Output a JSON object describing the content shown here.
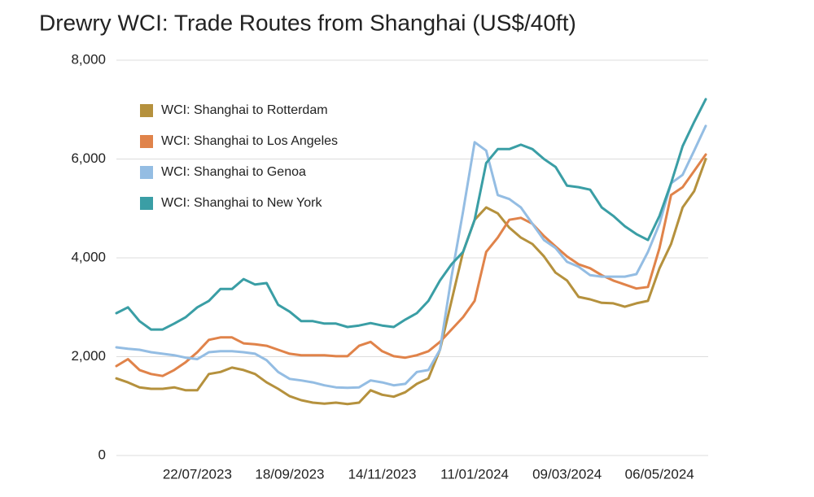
{
  "chart_data": {
    "type": "line",
    "title": "Drewry WCI: Trade Routes from Shanghai (US$/40ft)",
    "categories": [
      null,
      null,
      null,
      null,
      null,
      null,
      null,
      "22/07/2023",
      null,
      null,
      null,
      null,
      null,
      null,
      null,
      "18/09/2023",
      null,
      null,
      null,
      null,
      null,
      null,
      null,
      "14/11/2023",
      null,
      null,
      null,
      null,
      null,
      null,
      null,
      "11/01/2024",
      null,
      null,
      null,
      null,
      null,
      null,
      null,
      "09/03/2024",
      null,
      null,
      null,
      null,
      null,
      null,
      null,
      "06/05/2024",
      null,
      null,
      null,
      null
    ],
    "ylim": [
      0,
      8000
    ],
    "yticks": [
      0,
      {
        "value": 2000,
        "label": "2,000"
      },
      {
        "value": 4000,
        "label": "4,000"
      },
      {
        "value": 6000,
        "label": "6,000"
      },
      {
        "value": 8000,
        "label": "8,000"
      }
    ],
    "grid": true,
    "legend": "upper left",
    "series": [
      {
        "name": "WCI: Shanghai to Rotterdam",
        "color": "#b5913d",
        "values": [
          1560,
          1480,
          1380,
          1350,
          1350,
          1380,
          1320,
          1320,
          1650,
          1690,
          1780,
          1730,
          1650,
          1480,
          1350,
          1200,
          1120,
          1070,
          1050,
          1070,
          1040,
          1070,
          1320,
          1230,
          1190,
          1280,
          1450,
          1560,
          2140,
          3130,
          4120,
          4770,
          5020,
          4900,
          4610,
          4410,
          4280,
          4030,
          3700,
          3540,
          3210,
          3160,
          3090,
          3080,
          3010,
          3080,
          3130,
          3790,
          4280,
          5020,
          5350,
          6000
        ]
      },
      {
        "name": "WCI: Shanghai to Los Angeles",
        "color": "#e0834a",
        "values": [
          1810,
          1950,
          1730,
          1650,
          1610,
          1730,
          1890,
          2090,
          2340,
          2390,
          2390,
          2270,
          2250,
          2220,
          2140,
          2060,
          2030,
          2030,
          2030,
          2010,
          2010,
          2220,
          2300,
          2110,
          2010,
          1980,
          2030,
          2110,
          2300,
          2550,
          2800,
          3130,
          4120,
          4410,
          4770,
          4810,
          4690,
          4440,
          4230,
          4030,
          3870,
          3790,
          3650,
          3540,
          3460,
          3380,
          3410,
          4200,
          5270,
          5430,
          5760,
          6090
        ]
      },
      {
        "name": "WCI: Shanghai to Genoa",
        "color": "#94bde3",
        "values": [
          2190,
          2160,
          2140,
          2090,
          2060,
          2030,
          1980,
          1950,
          2090,
          2110,
          2110,
          2090,
          2060,
          1930,
          1690,
          1550,
          1520,
          1480,
          1420,
          1380,
          1370,
          1380,
          1520,
          1480,
          1420,
          1450,
          1690,
          1730,
          2140,
          3620,
          4940,
          6340,
          6170,
          5270,
          5190,
          5020,
          4690,
          4360,
          4200,
          3920,
          3820,
          3650,
          3620,
          3620,
          3620,
          3670,
          4120,
          4690,
          5510,
          5680,
          6170,
          6670
        ]
      },
      {
        "name": "WCI: Shanghai to New York",
        "color": "#3a9ea5",
        "values": [
          2880,
          3000,
          2720,
          2550,
          2550,
          2670,
          2800,
          3000,
          3130,
          3370,
          3370,
          3570,
          3460,
          3490,
          3050,
          2910,
          2720,
          2720,
          2670,
          2670,
          2600,
          2630,
          2680,
          2630,
          2600,
          2750,
          2880,
          3130,
          3540,
          3870,
          4120,
          4770,
          5920,
          6200,
          6200,
          6290,
          6200,
          6000,
          5840,
          5460,
          5430,
          5380,
          5020,
          4850,
          4640,
          4480,
          4360,
          4850,
          5510,
          6260,
          6750,
          7210
        ]
      }
    ]
  }
}
